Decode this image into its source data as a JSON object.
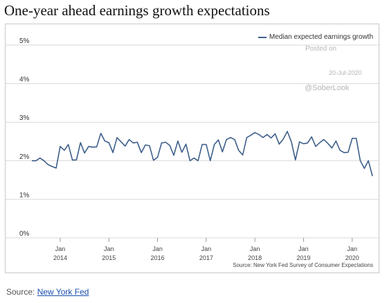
{
  "title": "One-year ahead earnings growth expectations",
  "watermark": {
    "posted": "Posted on",
    "date": "20-Jul-2020",
    "handle": "@SoberLook"
  },
  "legend": {
    "label": "Median expected earnings growth"
  },
  "chart_source": "Source: New York Fed Survey of Consumer Expectations",
  "page_source": {
    "prefix": "Source:",
    "link": "New York Fed"
  },
  "colors": {
    "series": "#3e5f8a",
    "gridline": "#d9d9d9"
  },
  "chart_data": {
    "type": "line",
    "title": "One-year ahead earnings growth expectations",
    "xlabel": "",
    "ylabel": "",
    "ylim": [
      0,
      5
    ],
    "y_tick_labels": [
      "0%",
      "1%",
      "2%",
      "3%",
      "4%",
      "5%"
    ],
    "x_tick_labels": [
      {
        "month": "Jan",
        "year": "2014"
      },
      {
        "month": "Jan",
        "year": "2015"
      },
      {
        "month": "Jan",
        "year": "2016"
      },
      {
        "month": "Jan",
        "year": "2017"
      },
      {
        "month": "Jan",
        "year": "2018"
      },
      {
        "month": "Jan",
        "year": "2019"
      },
      {
        "month": "Jan",
        "year": "2020"
      }
    ],
    "x_start": "2013-06",
    "x_end": "2020-06",
    "legend_position": "top-right",
    "grid": "horizontal",
    "series": [
      {
        "name": "Median expected earnings growth",
        "x": [
          "2013-06",
          "2013-07",
          "2013-08",
          "2013-09",
          "2013-10",
          "2013-11",
          "2013-12",
          "2014-01",
          "2014-02",
          "2014-03",
          "2014-04",
          "2014-05",
          "2014-06",
          "2014-07",
          "2014-08",
          "2014-09",
          "2014-10",
          "2014-11",
          "2014-12",
          "2015-01",
          "2015-02",
          "2015-03",
          "2015-04",
          "2015-05",
          "2015-06",
          "2015-07",
          "2015-08",
          "2015-09",
          "2015-10",
          "2015-11",
          "2015-12",
          "2016-01",
          "2016-02",
          "2016-03",
          "2016-04",
          "2016-05",
          "2016-06",
          "2016-07",
          "2016-08",
          "2016-09",
          "2016-10",
          "2016-11",
          "2016-12",
          "2017-01",
          "2017-02",
          "2017-03",
          "2017-04",
          "2017-05",
          "2017-06",
          "2017-07",
          "2017-08",
          "2017-09",
          "2017-10",
          "2017-11",
          "2017-12",
          "2018-01",
          "2018-02",
          "2018-03",
          "2018-04",
          "2018-05",
          "2018-06",
          "2018-07",
          "2018-08",
          "2018-09",
          "2018-10",
          "2018-11",
          "2018-12",
          "2019-01",
          "2019-02",
          "2019-03",
          "2019-04",
          "2019-05",
          "2019-06",
          "2019-07",
          "2019-08",
          "2019-09",
          "2019-10",
          "2019-11",
          "2019-12",
          "2020-01",
          "2020-02",
          "2020-03",
          "2020-04",
          "2020-05",
          "2020-06"
        ],
        "values": [
          2.0,
          2.0,
          2.07,
          2.0,
          1.9,
          1.85,
          1.81,
          2.37,
          2.27,
          2.42,
          2.02,
          2.02,
          2.47,
          2.2,
          2.37,
          2.35,
          2.36,
          2.71,
          2.51,
          2.47,
          2.21,
          2.6,
          2.49,
          2.38,
          2.55,
          2.46,
          2.48,
          2.21,
          2.41,
          2.39,
          2.01,
          2.09,
          2.46,
          2.48,
          2.4,
          2.14,
          2.51,
          2.22,
          2.43,
          2.0,
          2.07,
          2.0,
          2.42,
          2.42,
          2.0,
          2.42,
          2.54,
          2.23,
          2.55,
          2.6,
          2.55,
          2.27,
          2.15,
          2.6,
          2.66,
          2.73,
          2.68,
          2.6,
          2.68,
          2.59,
          2.7,
          2.43,
          2.56,
          2.76,
          2.49,
          2.02,
          2.49,
          2.44,
          2.46,
          2.62,
          2.37,
          2.47,
          2.55,
          2.45,
          2.33,
          2.51,
          2.27,
          2.21,
          2.22,
          2.58,
          2.58,
          2.0,
          1.8,
          2.0,
          1.6
        ]
      }
    ]
  }
}
